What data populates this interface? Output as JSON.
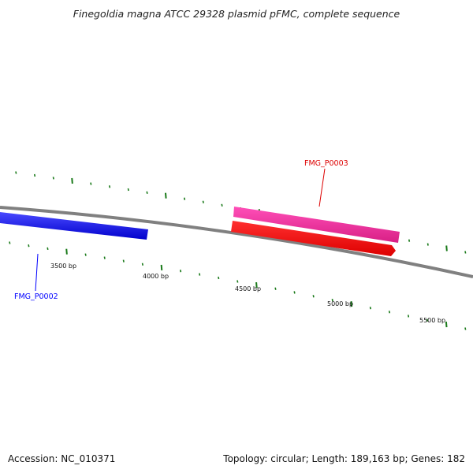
{
  "title": "Finegoldia magna ATCC 29328 plasmid pFMC, complete sequence",
  "tick_labels": [
    "3500 bp",
    "4000 bp",
    "4500 bp",
    "5000 bp",
    "5500 bp"
  ],
  "genes": [
    {
      "name": "FMG_P0002",
      "color": "#0000ff"
    },
    {
      "name": "FMG_P0003",
      "color": "#dd0000"
    }
  ],
  "colors": {
    "backbone": "#808080",
    "ticks": "#1a7a1a",
    "blue_feature": "#0a0af0",
    "pink_feature": "#ee2a99",
    "red_feature": "#ff0000"
  },
  "footer": {
    "accession": "Accession: NC_010371",
    "info": "Topology: circular; Length: 189,163 bp; Genes: 182"
  }
}
